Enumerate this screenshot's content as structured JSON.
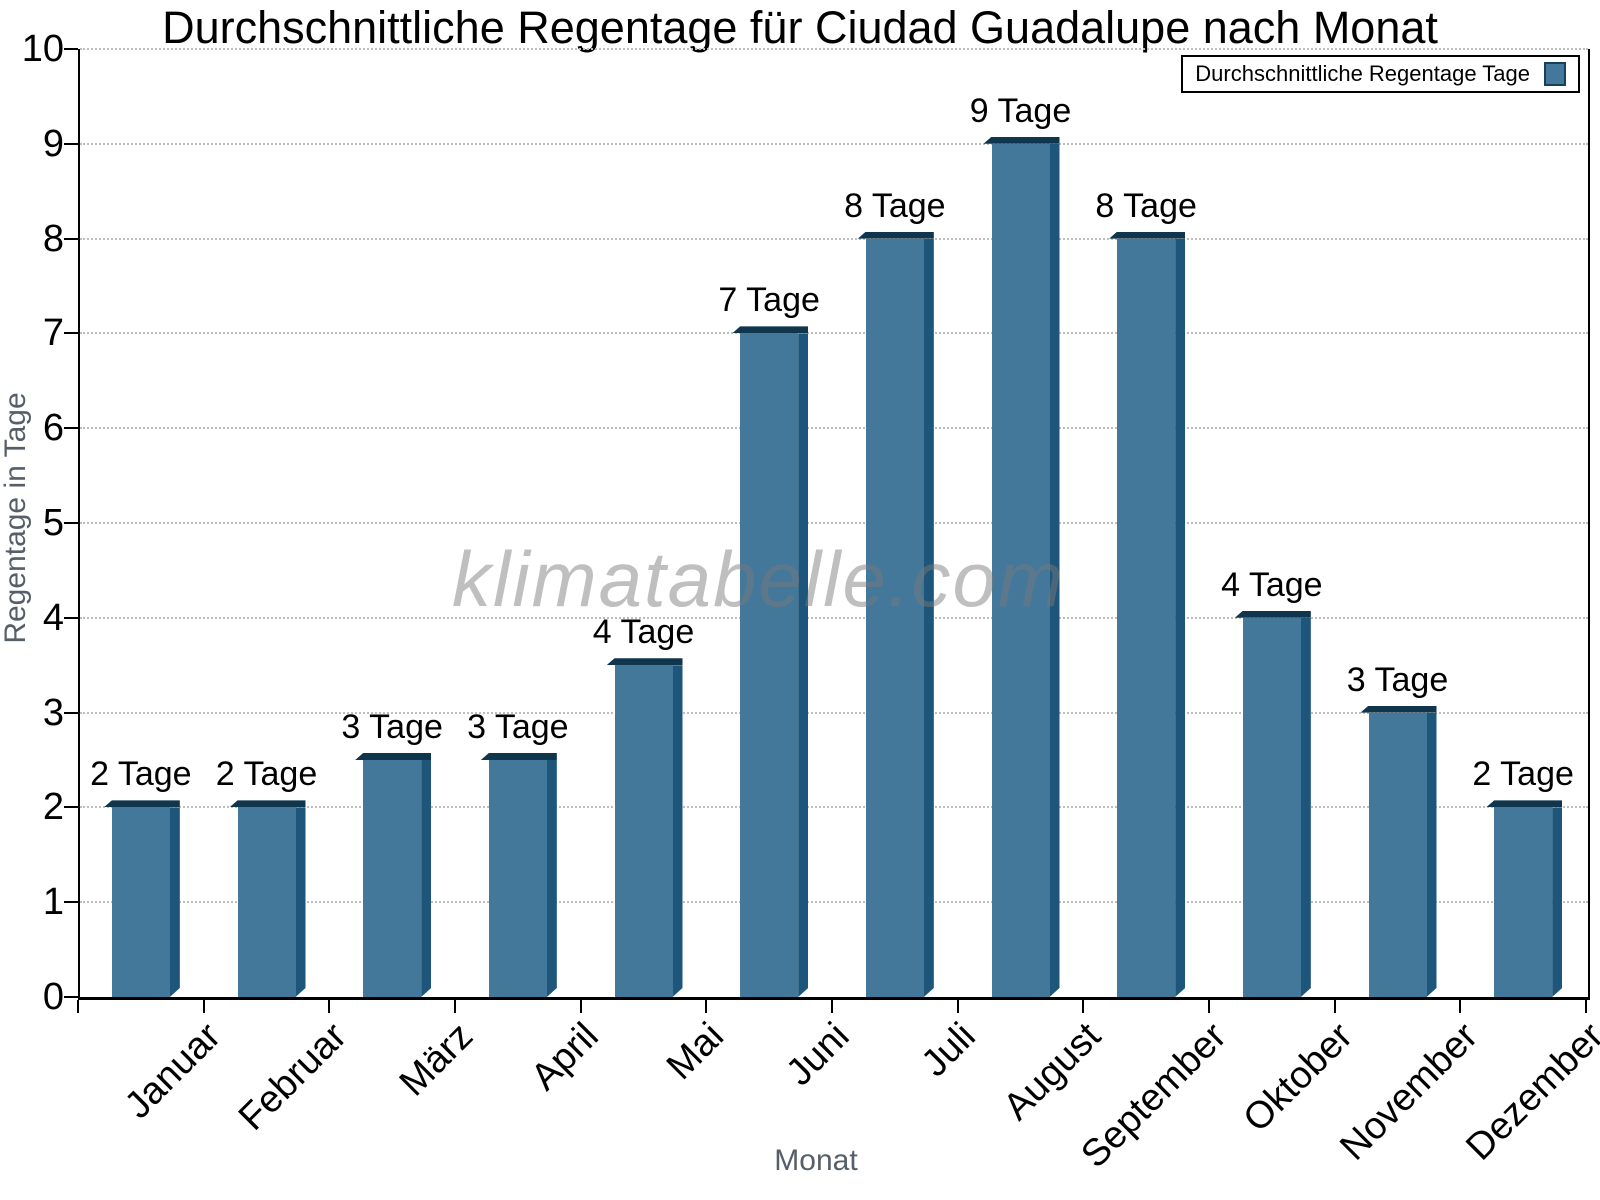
{
  "page": {
    "title": "Durchschnittliche Regentage für Ciudad Guadalupe nach Monat"
  },
  "legend": {
    "label": "Durchschnittliche Regentage Tage",
    "swatch_color": "#44789b",
    "position": "top-right"
  },
  "watermark": "klimatabelle.com",
  "chart_data": {
    "type": "bar",
    "title": "Durchschnittliche Regentage für Ciudad Guadalupe nach Monat",
    "xlabel": "Monat",
    "ylabel": "Regentage in Tage",
    "categories": [
      "Januar",
      "Februar",
      "März",
      "April",
      "Mai",
      "Juni",
      "Juli",
      "August",
      "September",
      "Oktober",
      "November",
      "Dezember"
    ],
    "values": [
      2,
      2,
      2.5,
      2.5,
      3.5,
      7,
      8,
      9,
      8,
      4,
      3,
      2
    ],
    "bar_labels": [
      "2 Tage",
      "2 Tage",
      "3 Tage",
      "3 Tage",
      "4 Tage",
      "7 Tage",
      "8 Tage",
      "9 Tage",
      "8 Tage",
      "4 Tage",
      "3 Tage",
      "2 Tage"
    ],
    "series": [
      {
        "name": "Durchschnittliche Regentage Tage",
        "values": [
          2,
          2,
          2.5,
          2.5,
          3.5,
          7,
          8,
          9,
          8,
          4,
          3,
          2
        ]
      }
    ],
    "ylim": [
      0,
      10
    ],
    "yticks": [
      0,
      1,
      2,
      3,
      4,
      5,
      6,
      7,
      8,
      9,
      10
    ],
    "grid": "horizontal dotted lines at integer values",
    "legend_position": "top-right",
    "colors": {
      "bar_face": "#44789b",
      "bar_side": "#1d567a",
      "bar_top": "#10364e",
      "gridline": "#bdbdbd",
      "axis": "#000000",
      "axis_titles": "#565f69"
    }
  }
}
